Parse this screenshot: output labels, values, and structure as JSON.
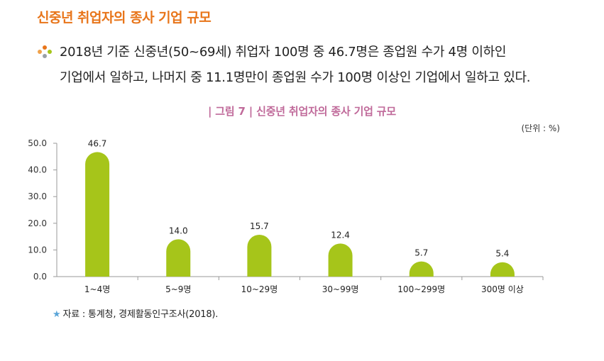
{
  "header": {
    "title": "신중년 취업자의 종사 기업 규모"
  },
  "bullet": {
    "icon": "dot-cluster-icon",
    "lines": [
      "2018년 기준 신중년(50~69세) 취업자 100명 중 46.7명은 종업원 수가 4명 이하인",
      "기업에서 일하고, 나머지 중 11.1명만이 종업원 수가 100명 이상인 기업에서 일하고 있다."
    ]
  },
  "figure": {
    "caption_prefix": "그림 7",
    "caption_title": "신중년 취업자의 종사 기업 규모",
    "unit": "(단위 : %)"
  },
  "chart_data": {
    "type": "bar",
    "categories": [
      "1~4명",
      "5~9명",
      "10~29명",
      "30~99명",
      "100~299명",
      "300명 이상"
    ],
    "values": [
      46.7,
      14.0,
      15.7,
      12.4,
      5.7,
      5.4
    ],
    "value_labels": [
      "46.7",
      "14.0",
      "15.7",
      "12.4",
      "5.7",
      "5.4"
    ],
    "y_ticks": [
      "0.0",
      "10.0",
      "20.0",
      "30.0",
      "40.0",
      "50.0"
    ],
    "ylim": [
      0,
      50
    ],
    "title": "신중년 취업자의 종사 기업 규모",
    "xlabel": "",
    "ylabel": "",
    "bar_color": "#a6c51a",
    "grid": false
  },
  "source": {
    "icon": "star-icon",
    "text": "자료 : 통계청, 경제활동인구조사(2018)."
  },
  "colors": {
    "title": "#e8751a",
    "caption": "#c06a9a",
    "bar": "#a6c51a",
    "star": "#5aa5d8"
  }
}
